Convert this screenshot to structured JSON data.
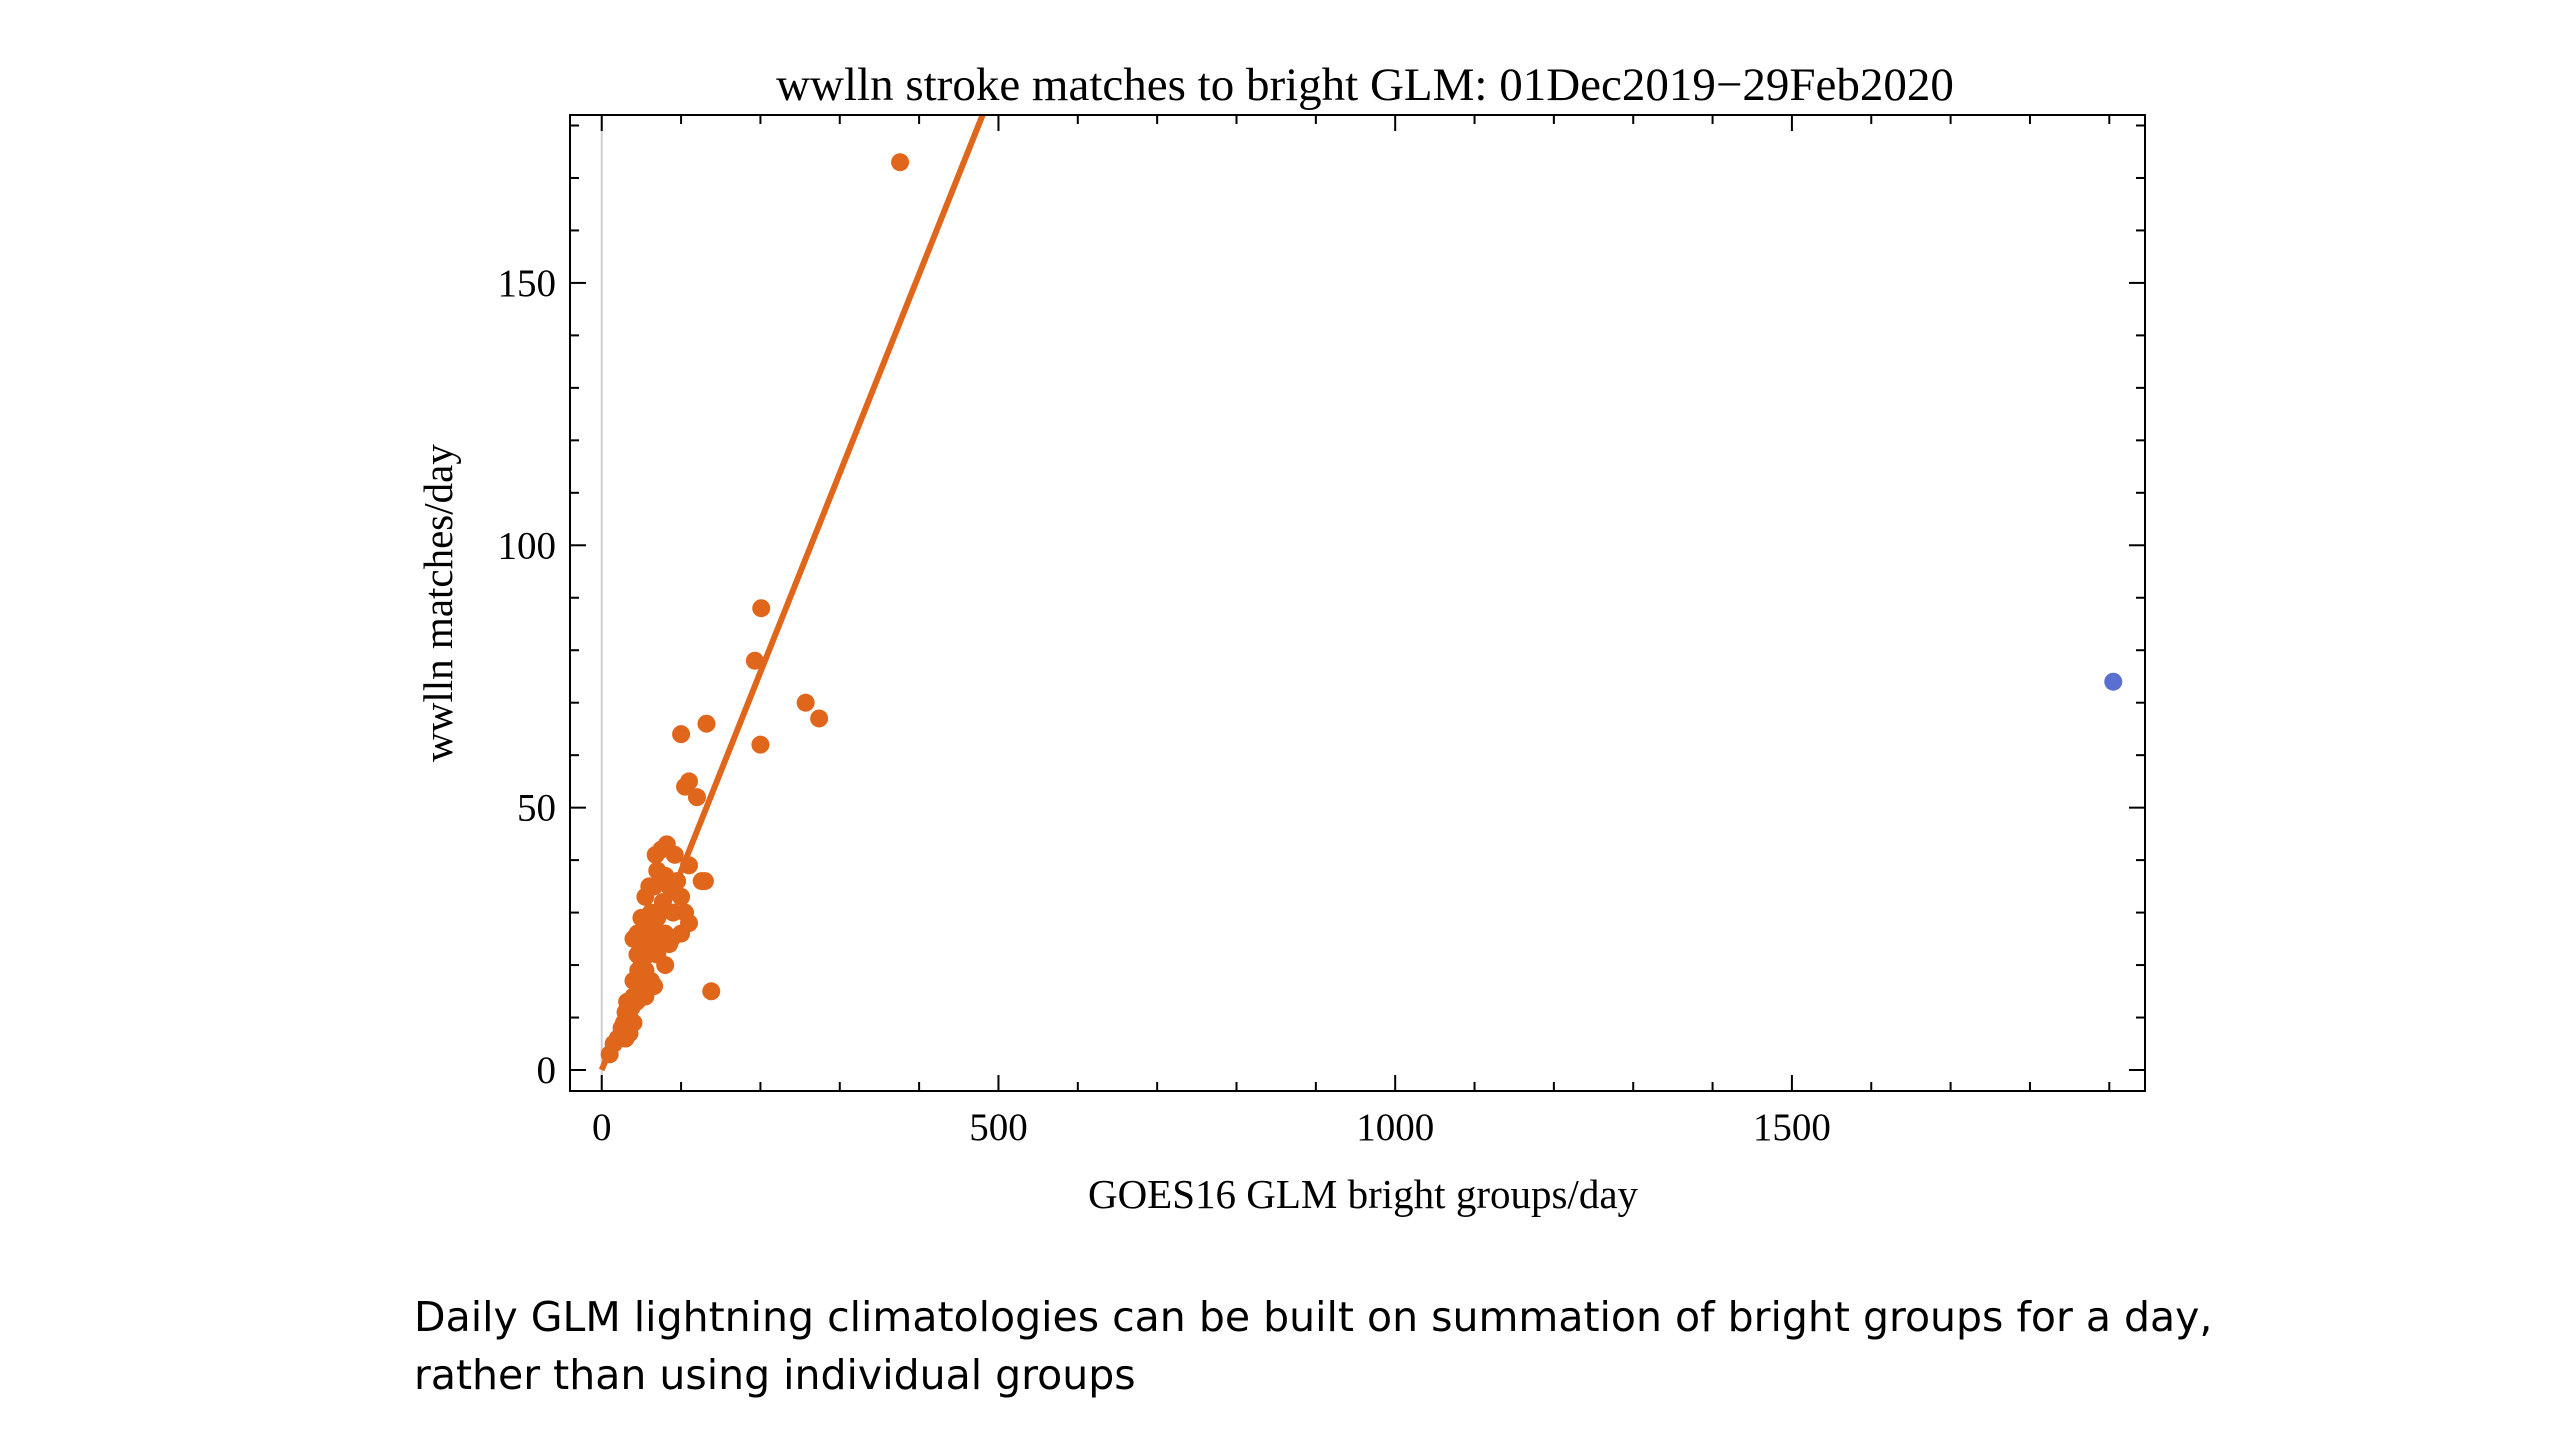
{
  "chart_data": {
    "type": "scatter",
    "title": "wwlln stroke matches to bright GLM: 01Dec2019−29Feb2020",
    "xlabel": "GOES16 GLM bright groups/day",
    "ylabel": "wwlln matches/day",
    "xlim": [
      -40,
      1945
    ],
    "ylim": [
      -4,
      182
    ],
    "xticks": [
      0,
      500,
      1000,
      1500
    ],
    "yticks": [
      0,
      50,
      100,
      150
    ],
    "grid": false,
    "colors": {
      "series": "#e0661b",
      "outlier": "#5b6fd0",
      "axis": "#000000",
      "zero_line": "#d0d0d0"
    },
    "fit_line": {
      "x": [
        0,
        480
      ],
      "y": [
        0,
        182
      ]
    },
    "series": [
      {
        "color": "#e0661b",
        "points": [
          [
            376,
            173
          ],
          [
            201,
            88
          ],
          [
            193,
            78
          ],
          [
            257,
            70
          ],
          [
            274,
            67
          ],
          [
            200,
            62
          ],
          [
            132,
            66
          ],
          [
            100,
            64
          ],
          [
            110,
            55
          ],
          [
            105,
            54
          ],
          [
            120,
            52
          ],
          [
            68,
            41
          ],
          [
            82,
            43
          ],
          [
            75,
            42
          ],
          [
            92,
            41
          ],
          [
            110,
            39
          ],
          [
            130,
            36
          ],
          [
            126,
            36
          ],
          [
            70,
            38
          ],
          [
            80,
            37
          ],
          [
            95,
            36
          ],
          [
            60,
            35
          ],
          [
            55,
            33
          ],
          [
            66,
            35
          ],
          [
            85,
            35
          ],
          [
            100,
            33
          ],
          [
            77,
            32
          ],
          [
            62,
            30
          ],
          [
            90,
            30
          ],
          [
            105,
            30
          ],
          [
            50,
            29
          ],
          [
            70,
            29
          ],
          [
            110,
            28
          ],
          [
            58,
            27
          ],
          [
            45,
            26
          ],
          [
            80,
            26
          ],
          [
            100,
            26
          ],
          [
            40,
            25
          ],
          [
            60,
            25
          ],
          [
            75,
            25
          ],
          [
            88,
            25
          ],
          [
            52,
            24
          ],
          [
            68,
            23
          ],
          [
            45,
            22
          ],
          [
            58,
            22
          ],
          [
            85,
            24
          ],
          [
            50,
            21
          ],
          [
            70,
            22
          ],
          [
            80,
            20
          ],
          [
            46,
            19
          ],
          [
            55,
            19
          ],
          [
            40,
            17
          ],
          [
            62,
            17
          ],
          [
            50,
            18
          ],
          [
            48,
            15
          ],
          [
            66,
            16
          ],
          [
            40,
            14
          ],
          [
            55,
            14
          ],
          [
            32,
            13
          ],
          [
            44,
            13
          ],
          [
            38,
            12
          ],
          [
            30,
            11
          ],
          [
            35,
            10
          ],
          [
            28,
            9
          ],
          [
            40,
            9
          ],
          [
            25,
            8
          ],
          [
            35,
            7
          ],
          [
            20,
            6
          ],
          [
            30,
            6
          ],
          [
            15,
            5
          ],
          [
            10,
            3
          ],
          [
            138,
            15
          ]
        ]
      },
      {
        "color": "#5b6fd0",
        "points": [
          [
            1905,
            74
          ]
        ]
      }
    ]
  },
  "caption": {
    "line1": "Daily GLM lightning climatologies can be built on summation of bright groups for a day,",
    "line2": "rather than using individual groups"
  }
}
